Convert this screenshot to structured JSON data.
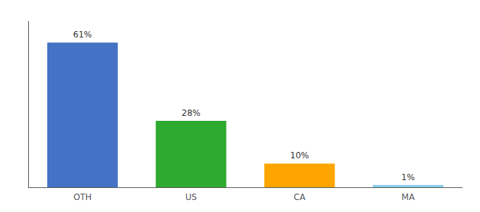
{
  "chart_data": {
    "type": "bar",
    "categories": [
      "OTH",
      "US",
      "CA",
      "MA"
    ],
    "values": [
      61,
      28,
      10,
      1
    ],
    "value_labels": [
      "61%",
      "28%",
      "10%",
      "1%"
    ],
    "data_labels": true,
    "colors": [
      "#4472C4",
      "#2EAA2E",
      "#FFA500",
      "#87CEEB"
    ],
    "ylim": [
      0,
      70
    ],
    "grid": false,
    "tick_labels": "x"
  }
}
